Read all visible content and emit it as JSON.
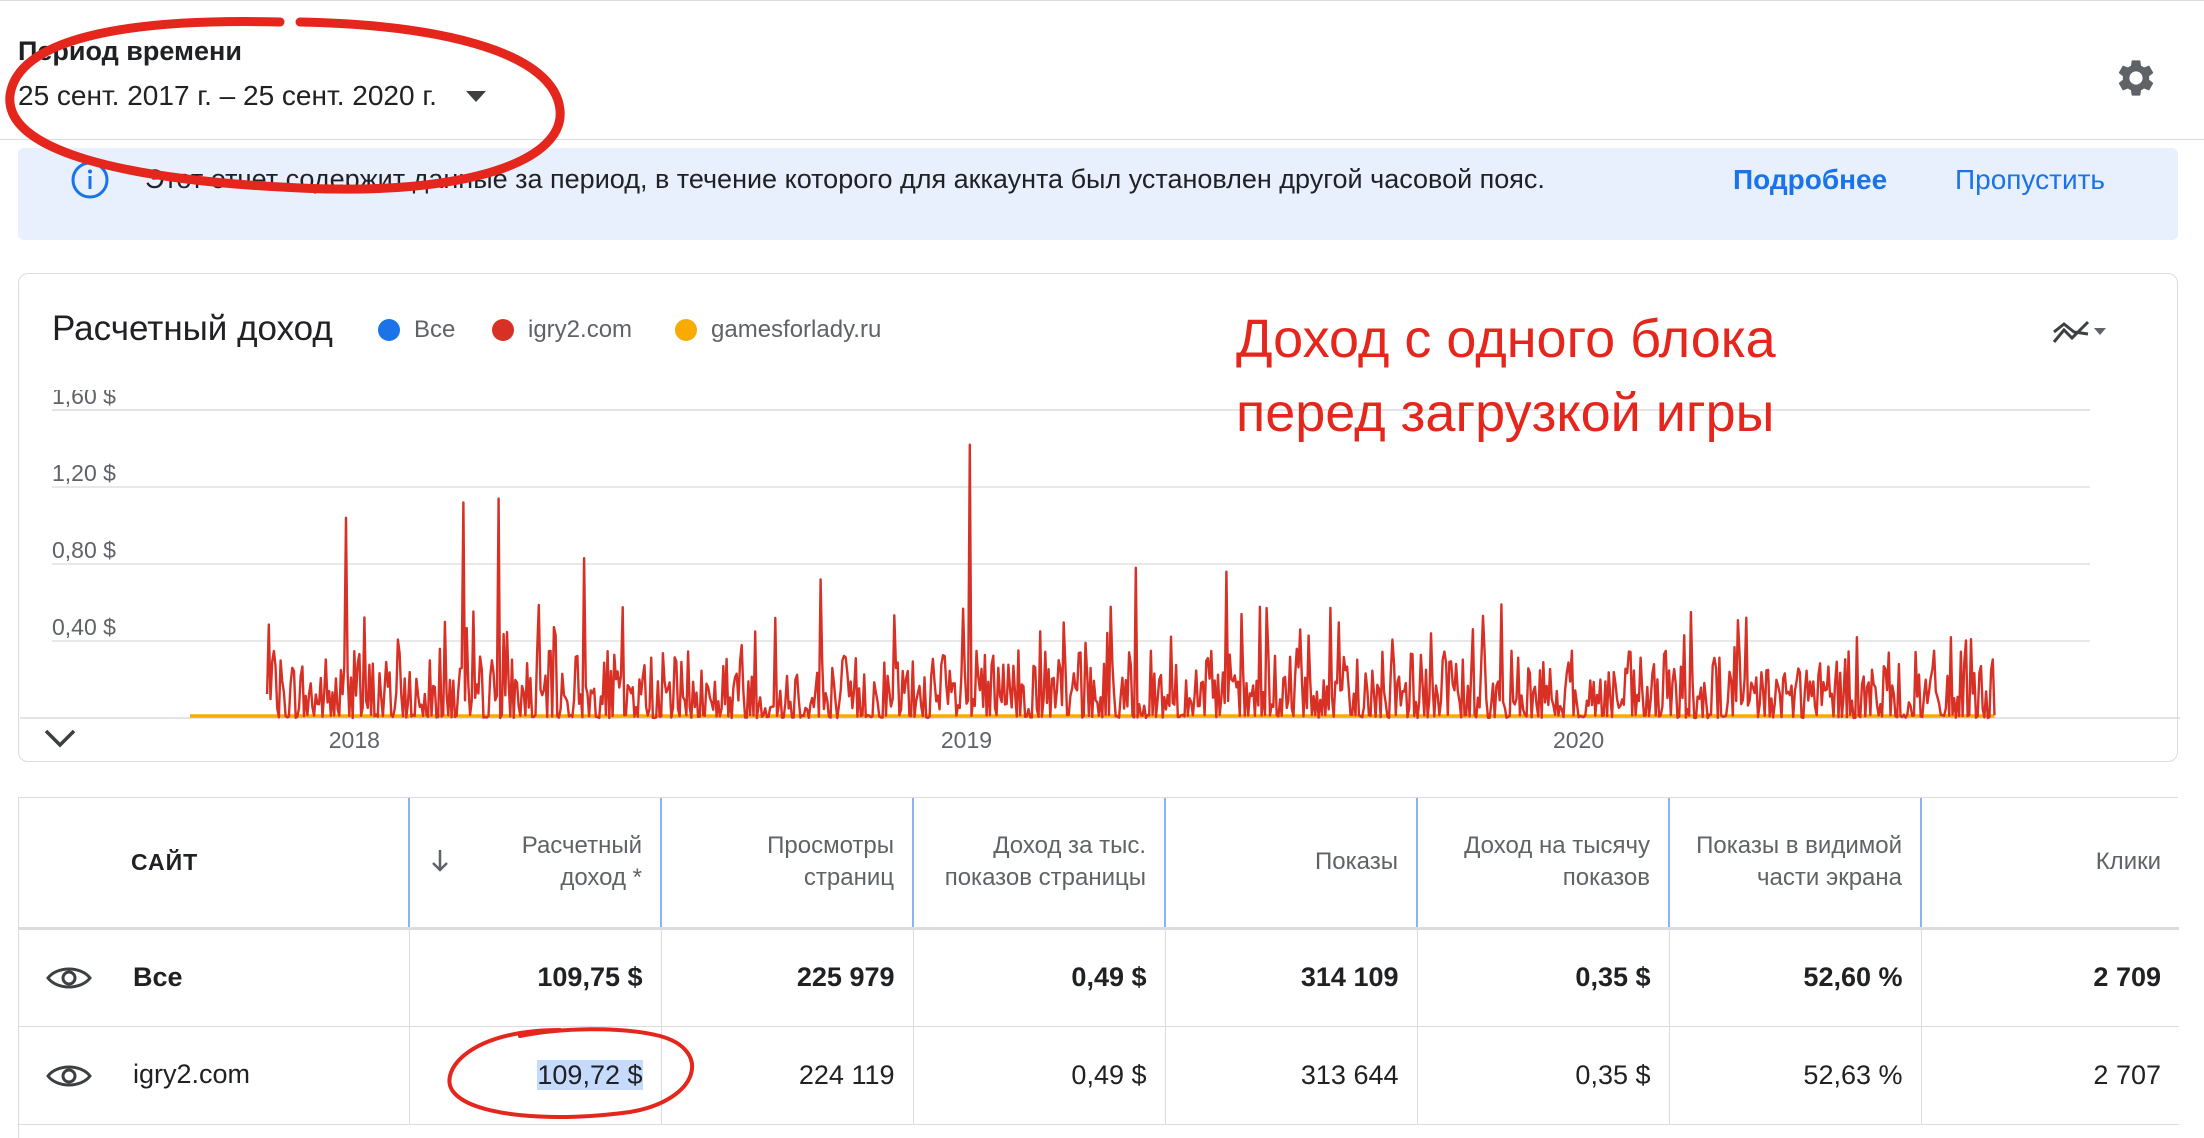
{
  "period": {
    "label": "Период времени",
    "value": "25 сент. 2017 г. – 25 сент. 2020 г."
  },
  "banner": {
    "text": "Этот отчет содержит данные за период, в течение которого для аккаунта был установлен другой часовой пояс.",
    "more": "Подробнее",
    "skip": "Пропустить"
  },
  "chart_card": {
    "title": "Расчетный доход",
    "legend": [
      {
        "name": "Все",
        "color": "#1a73e8"
      },
      {
        "name": "igry2.com",
        "color": "#d93025"
      },
      {
        "name": "gamesforlady.ru",
        "color": "#f9ab00"
      }
    ]
  },
  "annotation": {
    "line1": "Доход с одного блока",
    "line2": "перед загрузкой игры"
  },
  "chart_data": {
    "type": "line",
    "title": "Расчетный доход",
    "x_range": [
      "2017-09-25",
      "2020-09-25"
    ],
    "x_ticks": [
      "2018",
      "2019",
      "2020"
    ],
    "y_ticks": [
      "0,40 $",
      "0,80 $",
      "1,20 $",
      "1,60 $"
    ],
    "ylim": [
      0,
      1.6
    ],
    "grid": true,
    "series": [
      {
        "name": "igry2.com",
        "color": "#d93025",
        "peaks": [
          {
            "date": "2017-12-27",
            "value": 1.04
          },
          {
            "date": "2018-03-07",
            "value": 1.12
          },
          {
            "date": "2018-03-28",
            "value": 1.14
          },
          {
            "date": "2018-05-18",
            "value": 0.83
          },
          {
            "date": "2018-08-28",
            "value": 0.45
          },
          {
            "date": "2018-10-06",
            "value": 0.72
          },
          {
            "date": "2019-01-03",
            "value": 1.42
          },
          {
            "date": "2019-04-12",
            "value": 0.78
          },
          {
            "date": "2019-06-05",
            "value": 0.76
          },
          {
            "date": "2019-10-05",
            "value": 0.44
          },
          {
            "date": "2020-03-08",
            "value": 0.55
          },
          {
            "date": "2020-06-15",
            "value": 0.42
          },
          {
            "date": "2020-08-10",
            "value": 0.42
          }
        ],
        "typical_daily_range": [
          0.0,
          0.3
        ]
      },
      {
        "name": "gamesforlady.ru",
        "color": "#f9ab00",
        "values_note": "≈0"
      }
    ]
  },
  "table": {
    "columns": [
      "САЙТ",
      "Расчетный доход *",
      "Просмотры страниц",
      "Доход за тыс. показов страницы",
      "Показы",
      "Доход на тысячу показов",
      "Показы в видимой части экрана",
      "Клики"
    ],
    "rows": [
      {
        "site": "Все",
        "revenue": "109,75 $",
        "pageviews": "225 979",
        "page_rpm": "0,49 $",
        "impressions": "314 109",
        "rpm": "0,35 $",
        "viewability": "52,60 %",
        "clicks": "2 709"
      },
      {
        "site": "igry2.com",
        "revenue": "109,72 $",
        "pageviews": "224 119",
        "page_rpm": "0,49 $",
        "impressions": "313 644",
        "rpm": "0,35 $",
        "viewability": "52,63 %",
        "clicks": "2 707"
      }
    ]
  }
}
